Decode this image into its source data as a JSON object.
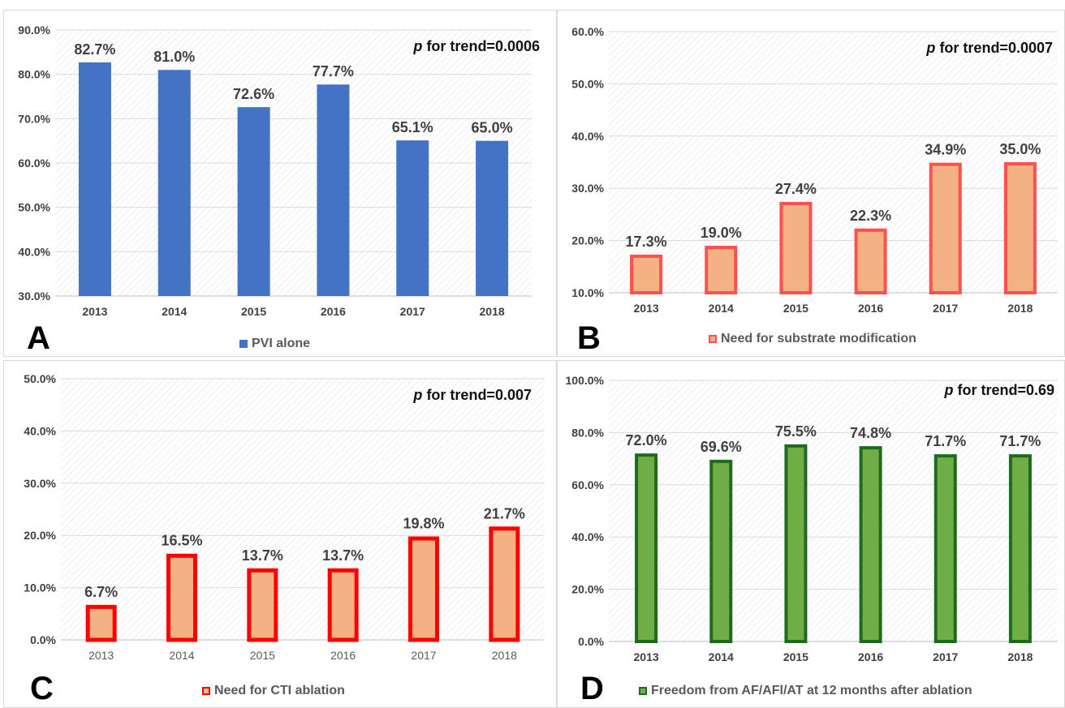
{
  "chart_data": [
    {
      "type": "bar",
      "panel_label": "A",
      "categories": [
        "2013",
        "2014",
        "2015",
        "2016",
        "2017",
        "2018"
      ],
      "series": [
        {
          "name": "PVI alone",
          "values": [
            82.7,
            81.0,
            72.6,
            77.7,
            65.1,
            65.0
          ]
        }
      ],
      "data_labels": [
        "82.7%",
        "81.0%",
        "72.6%",
        "77.7%",
        "65.1%",
        "65.0%"
      ],
      "ylim": [
        30,
        90
      ],
      "yticks": [
        "30.0%",
        "40.0%",
        "50.0%",
        "60.0%",
        "70.0%",
        "80.0%",
        "90.0%"
      ],
      "trend_label": "for trend=0.0006",
      "trend_p": "p",
      "legend_position": "bottom",
      "colors": {
        "fill": "#4472c4",
        "border": "#4472c4"
      }
    },
    {
      "type": "bar",
      "panel_label": "B",
      "categories": [
        "2013",
        "2014",
        "2015",
        "2016",
        "2017",
        "2018"
      ],
      "series": [
        {
          "name": "Need for substrate modification",
          "values": [
            17.3,
            19.0,
            27.4,
            22.3,
            34.9,
            35.0
          ]
        }
      ],
      "data_labels": [
        "17.3%",
        "19.0%",
        "27.4%",
        "22.3%",
        "34.9%",
        "35.0%"
      ],
      "ylim": [
        10,
        60
      ],
      "yticks": [
        "10.0%",
        "20.0%",
        "30.0%",
        "40.0%",
        "50.0%",
        "60.0%"
      ],
      "trend_label": "for trend=0.0007",
      "trend_p": "p",
      "legend_position": "bottom",
      "colors": {
        "fill": "#f4b183",
        "border": "#ff5050"
      }
    },
    {
      "type": "bar",
      "panel_label": "C",
      "categories": [
        "2013",
        "2014",
        "2015",
        "2016",
        "2017",
        "2018"
      ],
      "series": [
        {
          "name": "Need for CTI ablation",
          "values": [
            6.7,
            16.5,
            13.7,
            13.7,
            19.8,
            21.7
          ]
        }
      ],
      "data_labels": [
        "6.7%",
        "16.5%",
        "13.7%",
        "13.7%",
        "19.8%",
        "21.7%"
      ],
      "ylim": [
        0,
        50
      ],
      "yticks": [
        "0.0%",
        "10.0%",
        "20.0%",
        "30.0%",
        "40.0%",
        "50.0%"
      ],
      "trend_label": "for trend=0.007",
      "trend_p": "p",
      "legend_position": "bottom",
      "colors": {
        "fill": "#f4b183",
        "border": "#ff0000"
      }
    },
    {
      "type": "bar",
      "panel_label": "D",
      "categories": [
        "2013",
        "2014",
        "2015",
        "2016",
        "2017",
        "2018"
      ],
      "series": [
        {
          "name": "Freedom from AF/AFl/AT at 12 months after ablation",
          "values": [
            72.0,
            69.6,
            75.5,
            74.8,
            71.7,
            71.7
          ]
        }
      ],
      "data_labels": [
        "72.0%",
        "69.6%",
        "75.5%",
        "74.8%",
        "71.7%",
        "71.7%"
      ],
      "ylim": [
        0,
        100
      ],
      "yticks": [
        "0.0%",
        "20.0%",
        "40.0%",
        "60.0%",
        "80.0%",
        "100.0%"
      ],
      "trend_label": "for trend=0.69",
      "trend_p": "p",
      "legend_position": "bottom",
      "colors": {
        "fill": "#70ad47",
        "border": "#1e6b1e"
      }
    }
  ]
}
